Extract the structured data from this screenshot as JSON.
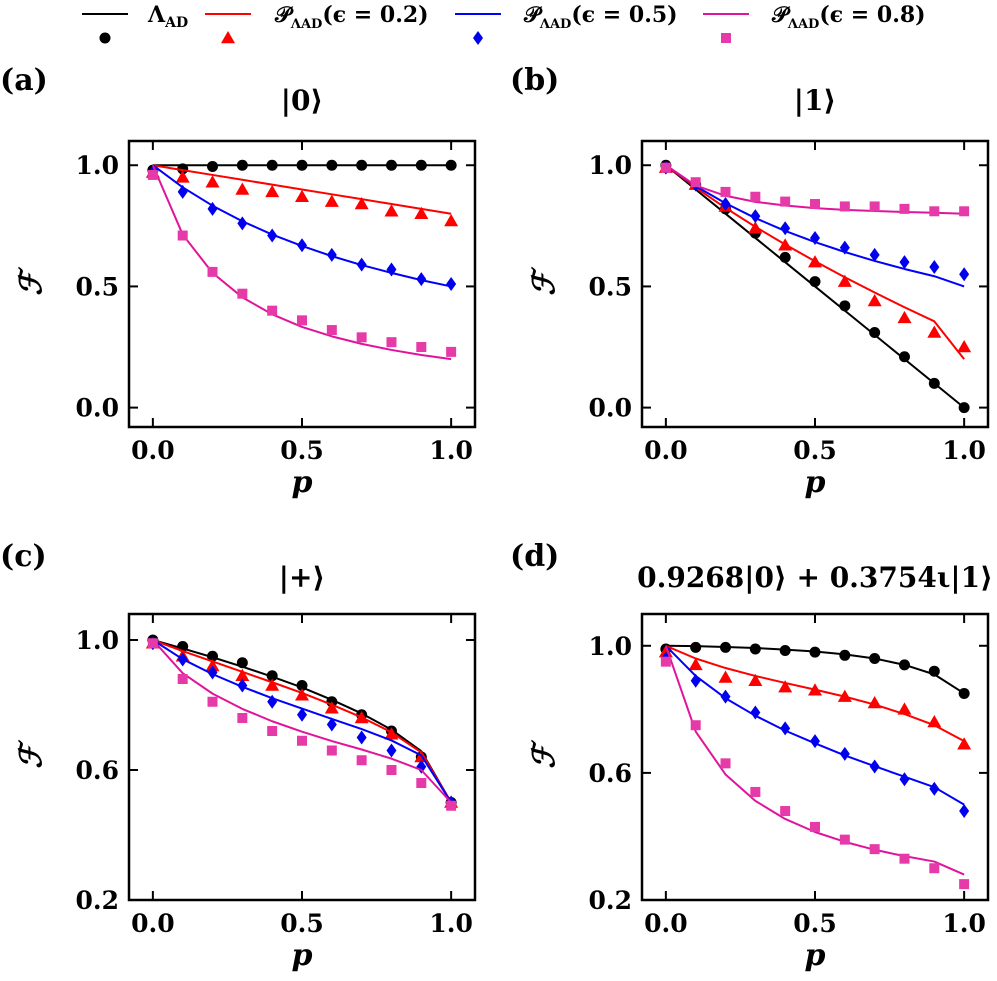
{
  "legend": {
    "entries": [
      {
        "label": "Λ_AD",
        "line_color": "#000000",
        "marker": "circle",
        "marker_color": "#000000"
      },
      {
        "label": "𝒫_Λ_AD(ϵ = 0.2)",
        "line_color": "#ff0000",
        "marker": "triangle",
        "marker_color": "#ff0000"
      },
      {
        "label": "𝒫_Λ_AD(ϵ = 0.5)",
        "line_color": "#0000ff",
        "marker": "diamond",
        "marker_color": "#0000ee"
      },
      {
        "label": "𝒫_Λ_AD(ϵ = 0.8)",
        "line_color": "#e0149c",
        "marker": "square",
        "marker_color": "#e63aa8"
      }
    ]
  },
  "chart_data": [
    {
      "type": "line",
      "panel_label": "(a)",
      "title": "|0⟩",
      "xlabel": "p",
      "ylabel": "ℱ",
      "xlim": [
        -0.08,
        1.08
      ],
      "ylim": [
        -0.08,
        1.1
      ],
      "xticks": [
        0.0,
        0.5,
        1.0
      ],
      "xtick_labels": [
        "0.0",
        "0.5",
        "1.0"
      ],
      "yticks": [
        0.0,
        0.5,
        1.0
      ],
      "ytick_labels": [
        "0.0",
        "0.5",
        "1.0"
      ],
      "x": [
        0.0,
        0.1,
        0.2,
        0.3,
        0.4,
        0.5,
        0.6,
        0.7,
        0.8,
        0.9,
        1.0
      ],
      "series": [
        {
          "curve": [
            1.0,
            1.0,
            1.0,
            1.0,
            1.0,
            1.0,
            1.0,
            1.0,
            1.0,
            1.0,
            1.0
          ],
          "points": [
            0.98,
            0.985,
            0.995,
            1.0,
            1.0,
            1.0,
            1.0,
            1.0,
            1.0,
            1.0,
            1.0
          ]
        },
        {
          "curve": [
            1.0,
            0.98,
            0.96,
            0.94,
            0.92,
            0.9,
            0.88,
            0.86,
            0.84,
            0.82,
            0.8
          ],
          "points": [
            0.97,
            0.95,
            0.93,
            0.9,
            0.89,
            0.87,
            0.85,
            0.84,
            0.81,
            0.8,
            0.77
          ]
        },
        {
          "curve": [
            1.0,
            0.909,
            0.833,
            0.769,
            0.714,
            0.667,
            0.625,
            0.588,
            0.556,
            0.526,
            0.5
          ],
          "points": [
            0.97,
            0.89,
            0.82,
            0.76,
            0.71,
            0.67,
            0.63,
            0.59,
            0.57,
            0.53,
            0.51
          ]
        },
        {
          "curve": [
            1.0,
            0.714,
            0.556,
            0.455,
            0.385,
            0.333,
            0.294,
            0.263,
            0.238,
            0.217,
            0.2
          ],
          "points": [
            0.96,
            0.71,
            0.56,
            0.47,
            0.4,
            0.36,
            0.32,
            0.29,
            0.27,
            0.25,
            0.23
          ]
        }
      ]
    },
    {
      "type": "line",
      "panel_label": "(b)",
      "title": "|1⟩",
      "xlabel": "p",
      "ylabel": "ℱ",
      "xlim": [
        -0.08,
        1.08
      ],
      "ylim": [
        -0.08,
        1.1
      ],
      "xticks": [
        0.0,
        0.5,
        1.0
      ],
      "xtick_labels": [
        "0.0",
        "0.5",
        "1.0"
      ],
      "yticks": [
        0.0,
        0.5,
        1.0
      ],
      "ytick_labels": [
        "0.0",
        "0.5",
        "1.0"
      ],
      "x": [
        0.0,
        0.1,
        0.2,
        0.3,
        0.4,
        0.5,
        0.6,
        0.7,
        0.8,
        0.9,
        1.0
      ],
      "series": [
        {
          "curve": [
            1.0,
            0.9,
            0.8,
            0.7,
            0.6,
            0.5,
            0.4,
            0.3,
            0.2,
            0.1,
            0.0
          ],
          "points": [
            1.0,
            0.92,
            0.82,
            0.72,
            0.62,
            0.52,
            0.42,
            0.31,
            0.21,
            0.1,
            0.0
          ]
        },
        {
          "curve": [
            1.0,
            0.908,
            0.824,
            0.746,
            0.673,
            0.604,
            0.538,
            0.475,
            0.414,
            0.356,
            0.2
          ],
          "points": [
            0.99,
            0.92,
            0.83,
            0.74,
            0.67,
            0.6,
            0.52,
            0.44,
            0.37,
            0.31,
            0.25
          ]
        },
        {
          "curve": [
            1.0,
            0.914,
            0.843,
            0.782,
            0.729,
            0.683,
            0.642,
            0.605,
            0.572,
            0.542,
            0.5
          ],
          "points": [
            0.99,
            0.92,
            0.84,
            0.79,
            0.74,
            0.7,
            0.66,
            0.63,
            0.6,
            0.58,
            0.55
          ]
        },
        {
          "curve": [
            1.0,
            0.916,
            0.874,
            0.849,
            0.834,
            0.823,
            0.816,
            0.811,
            0.807,
            0.804,
            0.8
          ],
          "points": [
            0.99,
            0.93,
            0.89,
            0.87,
            0.85,
            0.84,
            0.83,
            0.83,
            0.82,
            0.81,
            0.81
          ]
        }
      ]
    },
    {
      "type": "line",
      "panel_label": "(c)",
      "title": "|+⟩",
      "xlabel": "p",
      "ylabel": "ℱ",
      "xlim": [
        -0.08,
        1.08
      ],
      "ylim": [
        0.2,
        1.08
      ],
      "xticks": [
        0.0,
        0.5,
        1.0
      ],
      "xtick_labels": [
        "0.0",
        "0.5",
        "1.0"
      ],
      "yticks": [
        0.2,
        0.6,
        1.0
      ],
      "ytick_labels": [
        "0.2",
        "0.6",
        "1.0"
      ],
      "x": [
        0.0,
        0.1,
        0.2,
        0.3,
        0.4,
        0.5,
        0.6,
        0.7,
        0.8,
        0.9,
        1.0
      ],
      "series": [
        {
          "curve": [
            1.0,
            0.974,
            0.947,
            0.918,
            0.887,
            0.854,
            0.816,
            0.774,
            0.724,
            0.658,
            0.5
          ],
          "points": [
            1.0,
            0.98,
            0.95,
            0.93,
            0.89,
            0.86,
            0.81,
            0.77,
            0.72,
            0.64,
            0.5
          ]
        },
        {
          "curve": [
            1.0,
            0.966,
            0.934,
            0.902,
            0.87,
            0.837,
            0.801,
            0.762,
            0.716,
            0.654,
            0.5
          ],
          "points": [
            0.99,
            0.95,
            0.92,
            0.89,
            0.86,
            0.83,
            0.79,
            0.76,
            0.71,
            0.64,
            0.5
          ]
        },
        {
          "curve": [
            1.0,
            0.941,
            0.895,
            0.856,
            0.821,
            0.789,
            0.757,
            0.726,
            0.691,
            0.645,
            0.5
          ],
          "points": [
            0.99,
            0.94,
            0.9,
            0.86,
            0.81,
            0.77,
            0.74,
            0.7,
            0.66,
            0.61,
            0.5
          ]
        },
        {
          "curve": [
            1.0,
            0.898,
            0.835,
            0.788,
            0.75,
            0.718,
            0.689,
            0.663,
            0.635,
            0.6,
            0.5
          ],
          "points": [
            0.99,
            0.88,
            0.81,
            0.76,
            0.72,
            0.69,
            0.66,
            0.63,
            0.6,
            0.56,
            0.49
          ]
        }
      ]
    },
    {
      "type": "line",
      "panel_label": "(d)",
      "title": "0.9268|0⟩ + 0.3754ι|1⟩",
      "xlabel": "p",
      "ylabel": "ℱ",
      "xlim": [
        -0.08,
        1.08
      ],
      "ylim": [
        0.2,
        1.1
      ],
      "xticks": [
        0.0,
        0.5,
        1.0
      ],
      "xtick_labels": [
        "0.0",
        "0.5",
        "1.0"
      ],
      "yticks": [
        0.2,
        0.6,
        1.0
      ],
      "ytick_labels": [
        "0.2",
        "0.6",
        "1.0"
      ],
      "x": [
        0.0,
        0.1,
        0.2,
        0.3,
        0.4,
        0.5,
        0.6,
        0.7,
        0.8,
        0.9,
        1.0
      ],
      "series": [
        {
          "curve": [
            1.0,
            0.999,
            0.996,
            0.993,
            0.988,
            0.982,
            0.973,
            0.96,
            0.94,
            0.91,
            0.85
          ],
          "points": [
            0.99,
            0.995,
            0.995,
            0.99,
            0.985,
            0.98,
            0.97,
            0.96,
            0.94,
            0.92,
            0.85
          ]
        },
        {
          "curve": [
            1.0,
            0.96,
            0.93,
            0.905,
            0.883,
            0.862,
            0.84,
            0.815,
            0.785,
            0.75,
            0.7
          ],
          "points": [
            0.98,
            0.94,
            0.9,
            0.89,
            0.87,
            0.86,
            0.84,
            0.82,
            0.8,
            0.76,
            0.69
          ]
        },
        {
          "curve": [
            1.0,
            0.905,
            0.835,
            0.78,
            0.733,
            0.693,
            0.655,
            0.621,
            0.588,
            0.555,
            0.5
          ],
          "points": [
            0.96,
            0.89,
            0.84,
            0.79,
            0.74,
            0.7,
            0.66,
            0.62,
            0.58,
            0.55,
            0.48
          ]
        },
        {
          "curve": [
            1.0,
            0.73,
            0.595,
            0.512,
            0.455,
            0.414,
            0.383,
            0.358,
            0.338,
            0.321,
            0.28
          ],
          "points": [
            0.95,
            0.75,
            0.63,
            0.54,
            0.48,
            0.43,
            0.39,
            0.36,
            0.33,
            0.3,
            0.25
          ]
        }
      ]
    }
  ]
}
